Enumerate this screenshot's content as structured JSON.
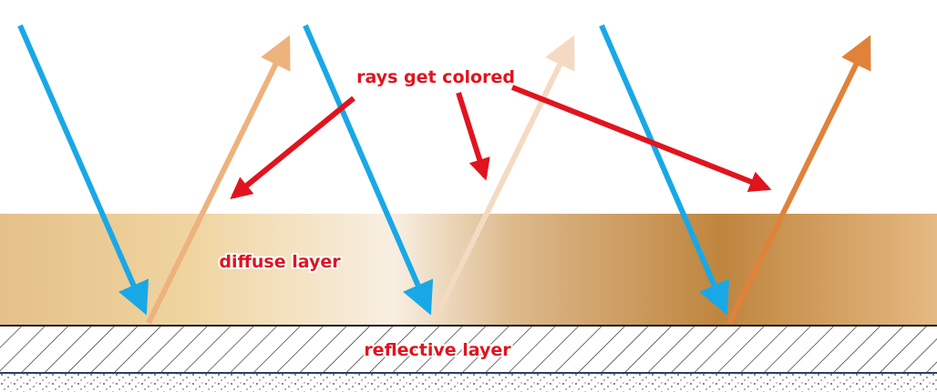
{
  "labels": {
    "callout": "rays get colored",
    "diffuse": "diffuse layer",
    "reflective": "reflective layer"
  }
}
